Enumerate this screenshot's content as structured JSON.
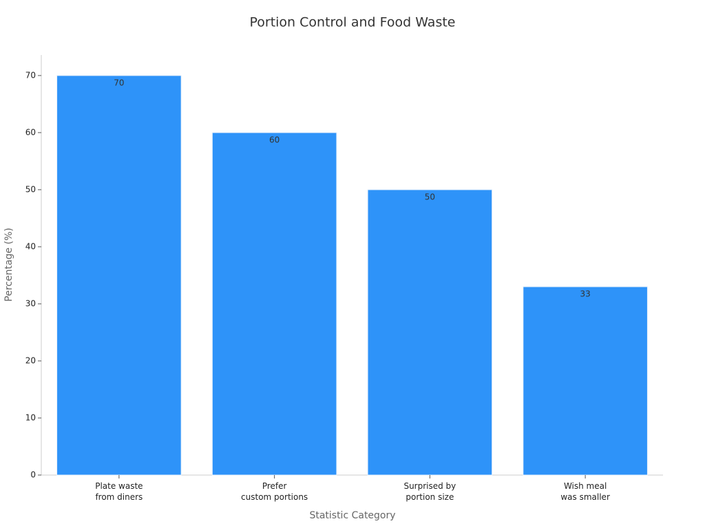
{
  "chart_data": {
    "type": "bar",
    "title": "Portion Control and Food Waste",
    "x_label": "Statistic Category",
    "y_label": "Percentage (%)",
    "categories": [
      "Plate waste\nfrom diners",
      "Prefer\ncustom portions",
      "Surprised by\nportion size",
      "Wish meal\nwas smaller"
    ],
    "values": [
      70,
      60,
      50,
      33
    ],
    "color": "#2e93f9",
    "ylim": [
      0,
      73.6
    ],
    "yticks": [
      0,
      10,
      20,
      30,
      40,
      50,
      60,
      70
    ],
    "grid": false
  }
}
